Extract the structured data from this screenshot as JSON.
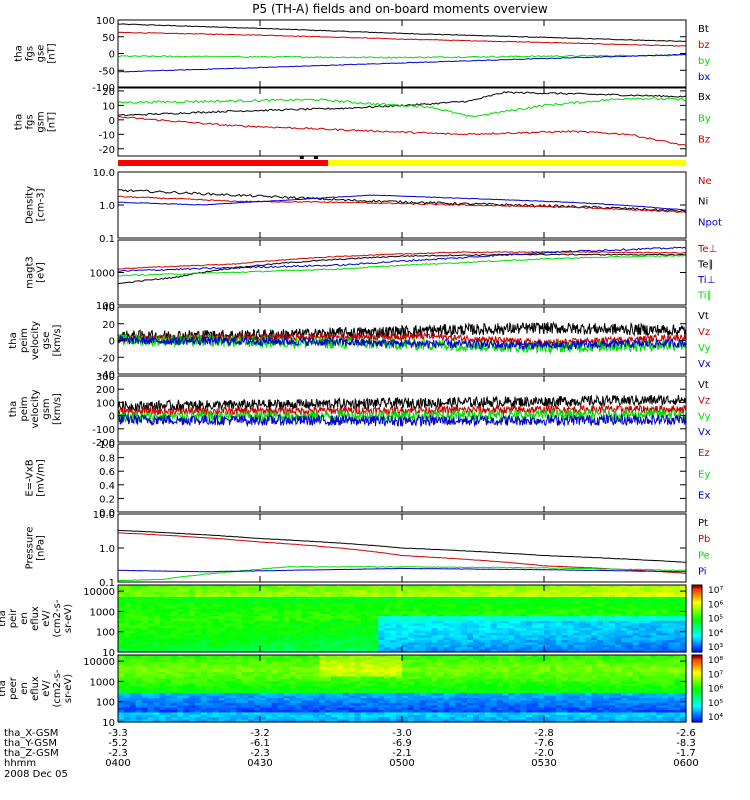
{
  "title": "P5 (TH-A) fields and on-board moments overview",
  "date": "2008 Dec 05",
  "colors": {
    "black": "#000000",
    "red": "#cc0000",
    "green": "#00dd00",
    "blue": "#0000cc",
    "yellow": "#ffff00",
    "frame": "#000000"
  },
  "time_axis": {
    "ticks": [
      "0400",
      "0430",
      "0500",
      "0530",
      "0600"
    ],
    "rows": [
      {
        "label": "tha_X-GSM",
        "values": [
          "-3.3",
          "-3.2",
          "-3.0",
          "-2.8",
          "-2.6"
        ]
      },
      {
        "label": "tha_Y-GSM",
        "values": [
          "-5.2",
          "-6.1",
          "-6.9",
          "-7.6",
          "-8.3"
        ]
      },
      {
        "label": "tha_Z-GSM",
        "values": [
          "-2.3",
          "-2.3",
          "-2.1",
          "-2.0",
          "-1.7"
        ]
      },
      {
        "label": "hhmm",
        "values": [
          "0400",
          "0430",
          "0500",
          "0530",
          "0600"
        ]
      }
    ]
  },
  "chart_data": [
    {
      "name": "panel-fgs-gse",
      "type": "line",
      "ylabel": [
        "tha",
        "fgs",
        "gse",
        "[nT]"
      ],
      "yticks": [
        "100",
        "50",
        "0",
        "-50",
        "-100"
      ],
      "ylim": [
        -100,
        100
      ],
      "log": false,
      "legend": [
        {
          "text": "Bt",
          "color": "black"
        },
        {
          "text": "bz",
          "color": "red"
        },
        {
          "text": "by",
          "color": "green"
        },
        {
          "text": "bx",
          "color": "blue"
        }
      ],
      "series": [
        {
          "color": "black",
          "x": [
            0,
            0.25,
            0.5,
            0.75,
            1
          ],
          "y": [
            88,
            75,
            60,
            48,
            36
          ],
          "noise": 1
        },
        {
          "color": "red",
          "x": [
            0,
            0.25,
            0.5,
            0.75,
            1
          ],
          "y": [
            63,
            55,
            43,
            33,
            22
          ],
          "noise": 1
        },
        {
          "color": "green",
          "x": [
            0,
            0.25,
            0.5,
            0.75,
            1
          ],
          "y": [
            -8,
            -10,
            -12,
            -8,
            -5
          ],
          "noise": 2
        },
        {
          "color": "blue",
          "x": [
            0,
            0.25,
            0.5,
            0.75,
            1
          ],
          "y": [
            -55,
            -42,
            -28,
            -15,
            -3
          ],
          "noise": 1
        }
      ]
    },
    {
      "name": "panel-fgs-gsm",
      "type": "line",
      "ylabel": [
        "tha",
        "fgs",
        "gsm",
        "[nT]"
      ],
      "yticks": [
        "20",
        "10",
        "0",
        "-10",
        "-20"
      ],
      "ylim": [
        -25,
        22
      ],
      "log": false,
      "legend": [
        {
          "text": "Bx",
          "color": "black"
        },
        {
          "text": "By",
          "color": "green"
        },
        {
          "text": "Bz",
          "color": "red"
        }
      ],
      "series": [
        {
          "color": "black",
          "x": [
            0,
            0.2,
            0.4,
            0.55,
            0.62,
            0.68,
            0.8,
            1
          ],
          "y": [
            3,
            6,
            8,
            11,
            13,
            19,
            18,
            16
          ],
          "noise": 0.6
        },
        {
          "color": "green",
          "x": [
            0,
            0.2,
            0.35,
            0.45,
            0.55,
            0.62,
            0.75,
            0.9,
            1
          ],
          "y": [
            12,
            13,
            14,
            11,
            9,
            2,
            10,
            15,
            14
          ],
          "noise": 0.8
        },
        {
          "color": "red",
          "x": [
            0,
            0.2,
            0.4,
            0.6,
            0.8,
            0.9,
            1
          ],
          "y": [
            2,
            -4,
            -7,
            -10,
            -8,
            -10,
            -18
          ],
          "noise": 0.6
        }
      ]
    },
    {
      "name": "panel-density",
      "type": "line",
      "ylabel": [
        "Density",
        "[cm-3]"
      ],
      "yticks": [
        "10.0",
        "1.0",
        "0.1"
      ],
      "ylim": [
        0.1,
        10
      ],
      "log": true,
      "legend": [
        {
          "text": "Ne",
          "color": "red"
        },
        {
          "text": "Ni",
          "color": "black"
        },
        {
          "text": "Npot",
          "color": "blue"
        }
      ],
      "series": [
        {
          "color": "black",
          "x": [
            0,
            0.2,
            0.4,
            0.6,
            0.8,
            1
          ],
          "y": [
            2.8,
            2.0,
            1.4,
            1.1,
            0.9,
            0.65
          ],
          "noise": 0.08
        },
        {
          "color": "red",
          "x": [
            0,
            0.2,
            0.4,
            0.6,
            0.8,
            1
          ],
          "y": [
            1.8,
            1.3,
            1.2,
            1.0,
            0.85,
            0.6
          ],
          "noise": 0.04
        },
        {
          "color": "blue",
          "x": [
            0,
            0.15,
            0.3,
            0.45,
            0.6,
            0.8,
            1
          ],
          "y": [
            1.2,
            1.0,
            1.4,
            2.0,
            1.6,
            1.2,
            0.7
          ],
          "noise": 0.02
        }
      ]
    },
    {
      "name": "panel-temperature",
      "type": "line",
      "ylabel": [
        "magt3",
        "[eV]"
      ],
      "yticks": [
        "1000",
        "100"
      ],
      "ylim": [
        100,
        10000
      ],
      "log": true,
      "legend": [
        {
          "text": "Te⊥",
          "color": "red"
        },
        {
          "text": "Te∥",
          "color": "black"
        },
        {
          "text": "Ti⊥",
          "color": "blue"
        },
        {
          "text": "Ti∥",
          "color": "green"
        }
      ],
      "series": [
        {
          "color": "black",
          "x": [
            0,
            0.1,
            0.3,
            0.5,
            0.7,
            1
          ],
          "y": [
            450,
            700,
            2000,
            3200,
            3600,
            3500
          ],
          "noise": 0.04
        },
        {
          "color": "red",
          "x": [
            0,
            0.2,
            0.4,
            0.6,
            0.8,
            1
          ],
          "y": [
            1300,
            1800,
            3200,
            4200,
            4300,
            4000
          ],
          "noise": 0.03
        },
        {
          "color": "blue",
          "x": [
            0,
            0.2,
            0.4,
            0.6,
            0.8,
            1
          ],
          "y": [
            1100,
            1400,
            1700,
            2800,
            4500,
            5800
          ],
          "noise": 0.06
        },
        {
          "color": "green",
          "x": [
            0,
            0.2,
            0.4,
            0.6,
            0.8,
            1
          ],
          "y": [
            800,
            1000,
            1300,
            2000,
            2800,
            3300
          ],
          "noise": 0.04
        }
      ]
    },
    {
      "name": "panel-peim-gse",
      "type": "line",
      "ylabel": [
        "tha",
        "peim",
        "velocity",
        "gse",
        "[km/s]"
      ],
      "yticks": [
        "40",
        "20",
        "0",
        "-20",
        "-40"
      ],
      "ylim": [
        -40,
        40
      ],
      "log": false,
      "legend": [
        {
          "text": "Vt",
          "color": "black"
        },
        {
          "text": "Vz",
          "color": "red"
        },
        {
          "text": "Vy",
          "color": "green"
        },
        {
          "text": "Vx",
          "color": "blue"
        }
      ],
      "series": [
        {
          "color": "black",
          "x": [
            0,
            0.3,
            0.55,
            0.75,
            1
          ],
          "y": [
            5,
            7,
            12,
            15,
            12
          ],
          "noise": 7
        },
        {
          "color": "red",
          "x": [
            0,
            0.3,
            0.55,
            0.75,
            1
          ],
          "y": [
            3,
            4,
            5,
            -3,
            4
          ],
          "noise": 4
        },
        {
          "color": "green",
          "x": [
            0,
            0.3,
            0.55,
            0.75,
            1
          ],
          "y": [
            1,
            -2,
            -5,
            -8,
            -5
          ],
          "noise": 7
        },
        {
          "color": "blue",
          "x": [
            0,
            0.3,
            0.55,
            0.75,
            1
          ],
          "y": [
            0,
            -1,
            -4,
            -6,
            -3
          ],
          "noise": 5
        }
      ]
    },
    {
      "name": "panel-peim-gsm",
      "type": "line",
      "ylabel": [
        "tha",
        "peim",
        "velocity",
        "gsm",
        "[km/s]"
      ],
      "yticks": [
        "300",
        "200",
        "100",
        "0",
        "-100",
        "-200"
      ],
      "ylim": [
        -200,
        300
      ],
      "log": false,
      "legend": [
        {
          "text": "Vt",
          "color": "black"
        },
        {
          "text": "Vz",
          "color": "red"
        },
        {
          "text": "Vy",
          "color": "green"
        },
        {
          "text": "Vx",
          "color": "blue"
        }
      ],
      "series": [
        {
          "color": "black",
          "x": [
            0,
            0.5,
            1
          ],
          "y": [
            70,
            95,
            120
          ],
          "noise": 40
        },
        {
          "color": "red",
          "x": [
            0,
            0.5,
            1
          ],
          "y": [
            30,
            40,
            50
          ],
          "noise": 30
        },
        {
          "color": "green",
          "x": [
            0,
            0.5,
            1
          ],
          "y": [
            -10,
            0,
            10
          ],
          "noise": 40
        },
        {
          "color": "blue",
          "x": [
            0,
            0.5,
            1
          ],
          "y": [
            -30,
            -40,
            -30
          ],
          "noise": 40
        }
      ]
    },
    {
      "name": "panel-efield",
      "type": "line",
      "ylabel": [
        "E=-VxB",
        "[mV/m]"
      ],
      "yticks": [
        "1.0",
        "0.8",
        "0.6",
        "0.4",
        "0.2",
        "0.0"
      ],
      "ylim": [
        0,
        1
      ],
      "log": false,
      "legend": [
        {
          "text": "Ez",
          "color": "red"
        },
        {
          "text": "Ey",
          "color": "green"
        },
        {
          "text": "Ex",
          "color": "blue"
        }
      ],
      "series": []
    },
    {
      "name": "panel-pressure",
      "type": "line",
      "ylabel": [
        "Pressure",
        "[nPa]"
      ],
      "yticks": [
        "10.0",
        "1.0",
        "0.1"
      ],
      "ylim": [
        0.1,
        10
      ],
      "log": true,
      "legend": [
        {
          "text": "Pt",
          "color": "black"
        },
        {
          "text": "Pb",
          "color": "red"
        },
        {
          "text": "Pe",
          "color": "green"
        },
        {
          "text": "Pi",
          "color": "blue"
        }
      ],
      "series": [
        {
          "color": "black",
          "x": [
            0,
            0.25,
            0.5,
            0.75,
            1
          ],
          "y": [
            3.3,
            1.9,
            1.0,
            0.6,
            0.38
          ],
          "noise": 0.01
        },
        {
          "color": "red",
          "x": [
            0,
            0.25,
            0.5,
            0.75,
            1
          ],
          "y": [
            2.8,
            1.5,
            0.6,
            0.3,
            0.18
          ],
          "noise": 0.01
        },
        {
          "color": "green",
          "x": [
            0,
            0.08,
            0.2,
            0.3,
            0.5,
            0.75,
            1
          ],
          "y": [
            0.11,
            0.12,
            0.2,
            0.28,
            0.28,
            0.26,
            0.22
          ],
          "noise": 0.02
        },
        {
          "color": "blue",
          "x": [
            0,
            0.15,
            0.3,
            0.5,
            0.75,
            1
          ],
          "y": [
            0.22,
            0.2,
            0.22,
            0.25,
            0.23,
            0.2
          ],
          "noise": 0.01
        }
      ]
    },
    {
      "name": "panel-peir-spectrogram",
      "type": "heatmap",
      "ylabel": [
        "tha",
        "peir",
        "en",
        "eflux",
        "eV/",
        "(cm2-s-",
        "sr-eV)"
      ],
      "yticks": [
        "10000",
        "1000",
        "100",
        "10"
      ],
      "ylim": [
        10,
        20000
      ],
      "log": true,
      "colorbar_ticks": [
        "10⁷",
        "10⁶",
        "10⁵",
        "10⁴",
        "10³"
      ],
      "mode": "ion"
    },
    {
      "name": "panel-peer-spectrogram",
      "type": "heatmap",
      "ylabel": [
        "tha",
        "peer",
        "en",
        "eflux",
        "eV/",
        "(cm2-s-",
        "sr-eV)"
      ],
      "yticks": [
        "10000",
        "1000",
        "100",
        "10"
      ],
      "ylim": [
        10,
        20000
      ],
      "log": true,
      "colorbar_ticks": [
        "10⁸",
        "10⁷",
        "10⁶",
        "10⁵",
        "10⁴"
      ],
      "mode": "electron"
    }
  ]
}
